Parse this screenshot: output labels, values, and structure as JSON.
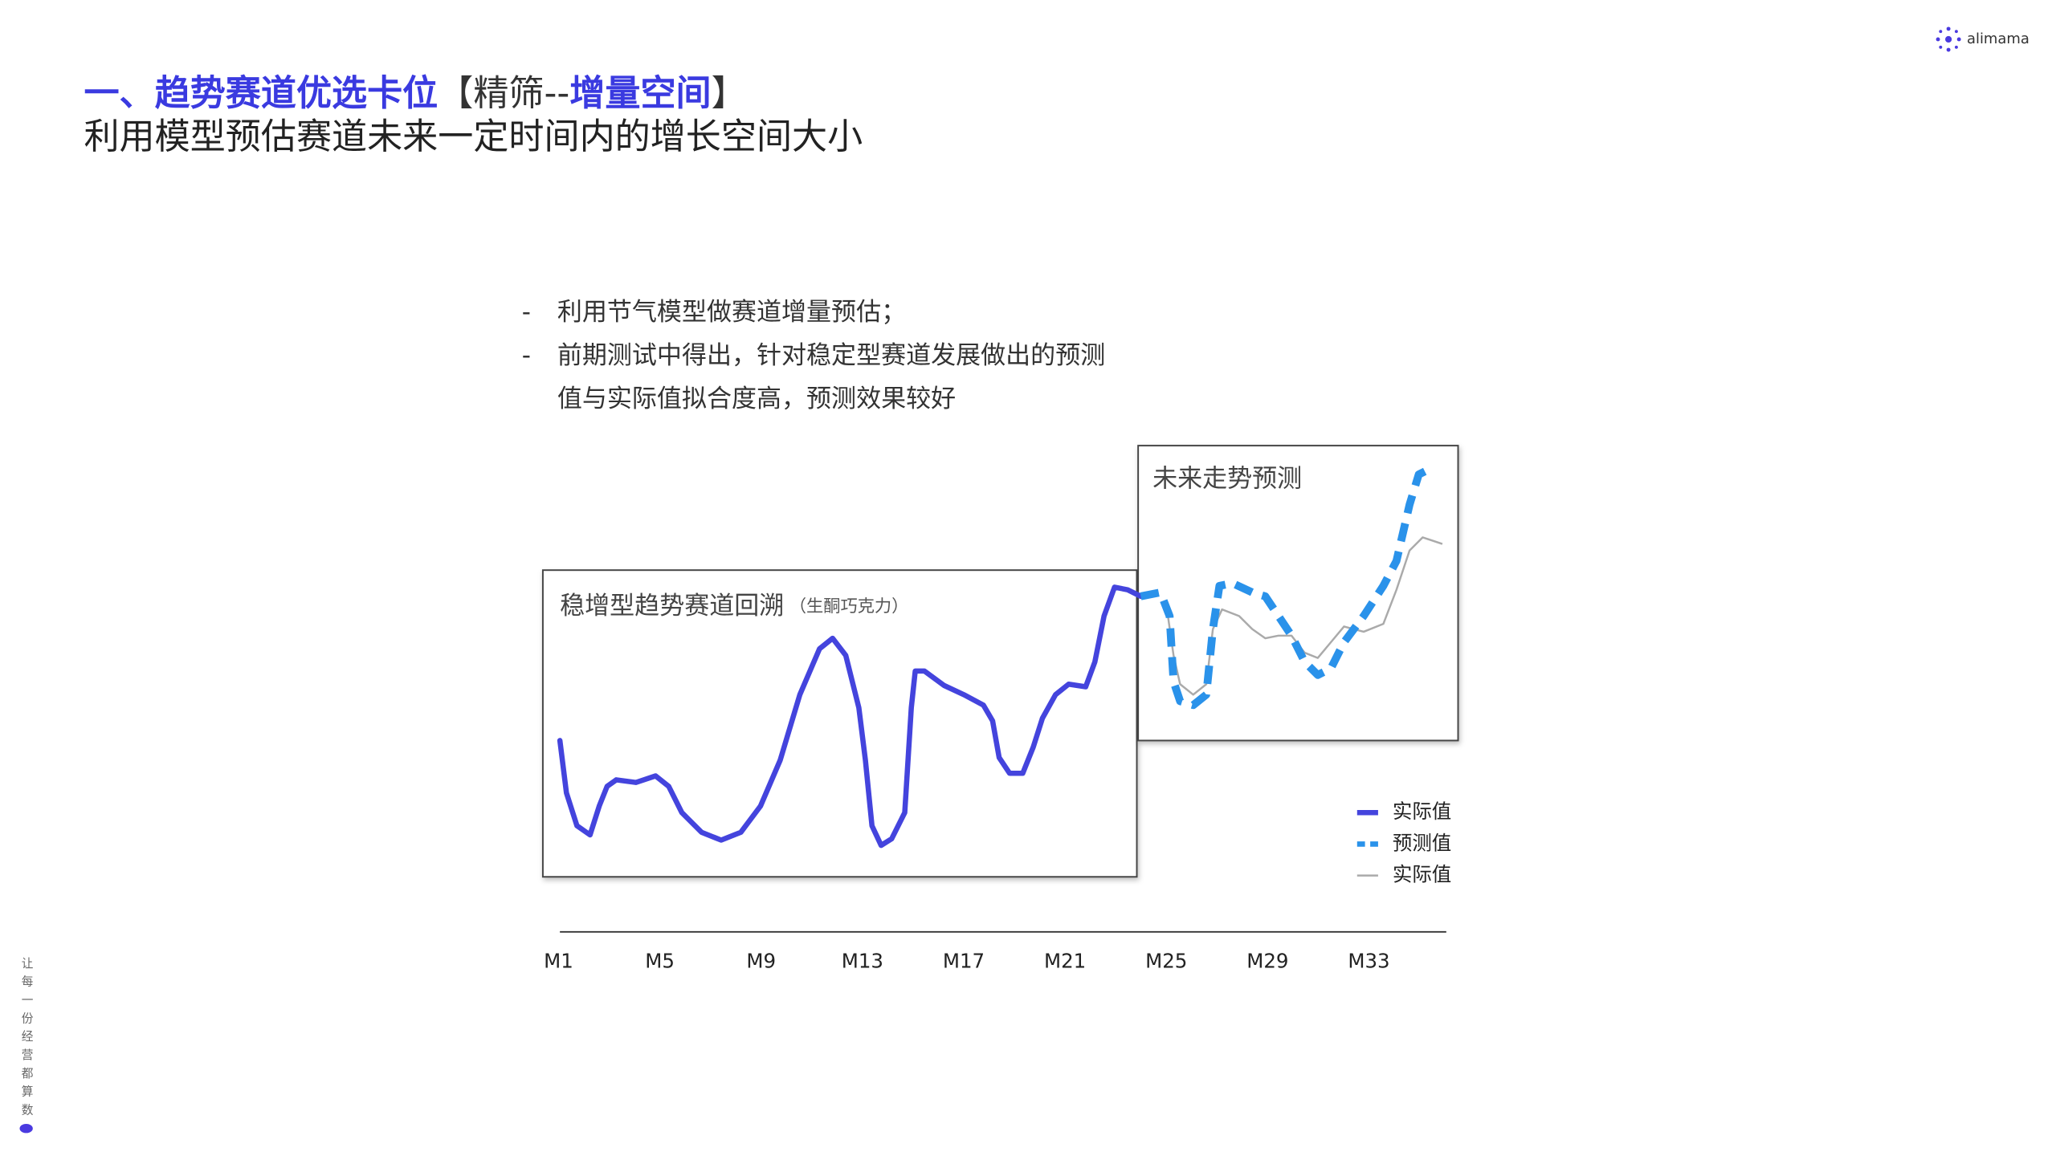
{
  "logo": "alimama",
  "header": {
    "title_part1": "一、趋势赛道优选卡位",
    "bracket_open": "【",
    "title_part2": "精筛--",
    "title_part3": "增量空间",
    "bracket_close": "】",
    "subtitle": "利用模型预估赛道未来一定时间内的增长空间大小"
  },
  "bullets": {
    "marker": "-",
    "items": [
      "利用节气模型做赛道增量预估；",
      "前期测试中得出，针对稳定型赛道发展做出的预测"
    ],
    "continuation": "值与实际值拟合度高，预测效果较好"
  },
  "panels": {
    "history_title": "稳增型趋势赛道回溯",
    "history_note": "（生酮巧克力）",
    "future_title": "未来走势预测"
  },
  "legend": [
    "实际值",
    "预测值",
    "实际值"
  ],
  "x_labels": [
    "M1",
    "M5",
    "M9",
    "M13",
    "M17",
    "M21",
    "M25",
    "M29",
    "M33"
  ],
  "slogan": "让每一份经营都算数"
}
